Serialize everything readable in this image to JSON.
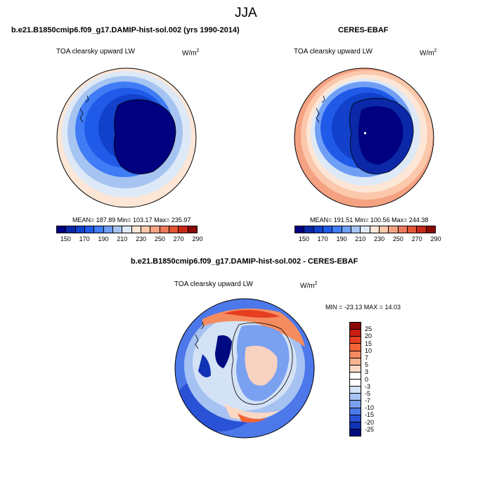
{
  "page": {
    "season_title": "JJA"
  },
  "panels": {
    "model": {
      "case_name": "b.e21.B1850cmip6.f09_g17.DAMIP-hist-sol.002 (yrs 1990-2014)",
      "variable": "TOA clearsky upward LW",
      "units_base": "W/m",
      "units_exp": "2",
      "stats": "MEAN= 187.89  Min= 103.17  Max= 235.97"
    },
    "obs": {
      "case_name": "CERES-EBAF",
      "variable": "TOA clearsky upward LW",
      "units_base": "W/m",
      "units_exp": "2",
      "stats": "MEAN= 191.51  Min= 100.56  Max= 244.38"
    },
    "diff": {
      "case_name": "b.e21.B1850cmip6.f09_g17.DAMIP-hist-sol.002 - CERES-EBAF",
      "variable": "TOA clearsky upward LW",
      "units_base": "W/m",
      "units_exp": "2",
      "stats": "MIN = -23.13 MAX =  14.03"
    }
  },
  "colorbars": {
    "abs": {
      "colors": [
        "#000080",
        "#0a28a8",
        "#1241cc",
        "#1f5ae8",
        "#3f7cf5",
        "#6f9ef5",
        "#a6c4f2",
        "#dde9f7",
        "#fde6d6",
        "#fbc8ac",
        "#f5a282",
        "#ee7b5c",
        "#e45536",
        "#c8281a",
        "#8a0a06"
      ],
      "labels": [
        "150",
        "170",
        "190",
        "210",
        "230",
        "250",
        "270",
        "290"
      ]
    },
    "diff": {
      "colors": [
        "#8c0a05",
        "#c81e12",
        "#e63e20",
        "#f26438",
        "#f58c60",
        "#f8b48e",
        "#fbd8c4",
        "#ffffff",
        "#ffffff",
        "#d4e2f6",
        "#a6c2f2",
        "#7aa0f0",
        "#4c78ea",
        "#2a52d6",
        "#1032b4",
        "#000a80"
      ],
      "labels": [
        "25",
        "20",
        "15",
        "10",
        "7",
        "5",
        "3",
        "0",
        "-3",
        "-5",
        "-7",
        "-10",
        "-15",
        "-20",
        "-25"
      ]
    }
  }
}
